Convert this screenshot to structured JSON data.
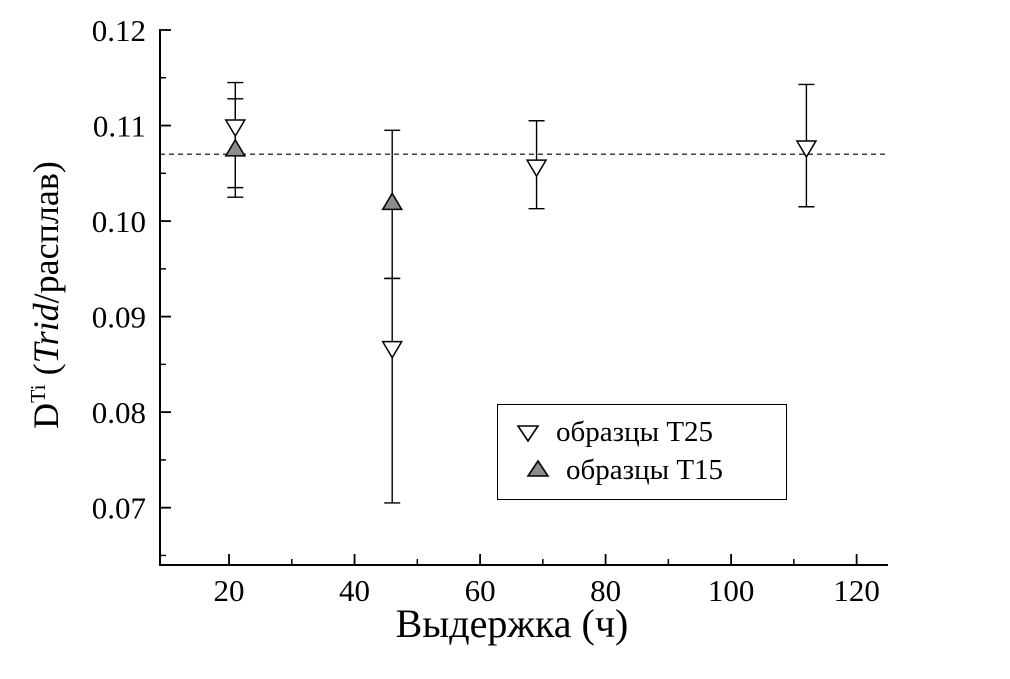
{
  "page": {
    "background": "#ffffff"
  },
  "labels": {
    "xlabel": "Выдержка (ч)",
    "ylabel_prefix": "D",
    "ylabel_sup": "Ti",
    "ylabel_mid": " (",
    "ylabel_italic": "Trid",
    "ylabel_suffix": "/расплав)"
  },
  "legend": {
    "items": [
      {
        "label": "образцы Т25",
        "marker": "open-triangle-down",
        "fill": "#ffffff",
        "stroke": "#000000"
      },
      {
        "label": "образцы Т15",
        "marker": "filled-triangle-up",
        "fill": "#8c8c8c",
        "stroke": "#000000"
      }
    ]
  },
  "chart_data": {
    "type": "scatter",
    "title": "",
    "xlabel": "Выдержка (ч)",
    "ylabel": "D^Ti (Trid/расплав)",
    "grid": false,
    "legend_position": "lower-center-right",
    "axes": {
      "x": {
        "min": 9,
        "max": 125,
        "major_ticks": [
          20,
          40,
          60,
          80,
          100,
          120
        ],
        "minor_ticks": [
          30,
          50,
          70,
          90,
          110
        ]
      },
      "y": {
        "min": 0.064,
        "max": 0.12,
        "major_ticks": [
          0.07,
          0.08,
          0.09,
          0.1,
          0.11,
          0.12
        ],
        "minor_ticks": [
          0.065,
          0.075,
          0.085,
          0.095,
          0.105,
          0.115
        ],
        "tick_decimals": 2
      }
    },
    "reference_line": {
      "y": 0.107,
      "style": "dashed",
      "color": "#000000"
    },
    "series": [
      {
        "name": "образцы Т25",
        "marker": "triangle-down",
        "fill": "#ffffff",
        "stroke": "#000000",
        "points": [
          {
            "x": 21,
            "y": 0.11,
            "err_low": 0.1025,
            "err_high": 0.1145
          },
          {
            "x": 46,
            "y": 0.0868,
            "err_low": 0.0705,
            "err_high": 0.094
          },
          {
            "x": 69,
            "y": 0.1058,
            "err_low": 0.1013,
            "err_high": 0.1105
          },
          {
            "x": 112,
            "y": 0.1078,
            "err_low": 0.1015,
            "err_high": 0.1143
          }
        ]
      },
      {
        "name": "образцы Т15",
        "marker": "triangle-up",
        "fill": "#8c8c8c",
        "stroke": "#000000",
        "points": [
          {
            "x": 21,
            "y": 0.1074,
            "err_low": 0.1035,
            "err_high": 0.1128
          },
          {
            "x": 46,
            "y": 0.1018,
            "err_low": 0.094,
            "err_high": 0.1095
          }
        ]
      }
    ]
  }
}
